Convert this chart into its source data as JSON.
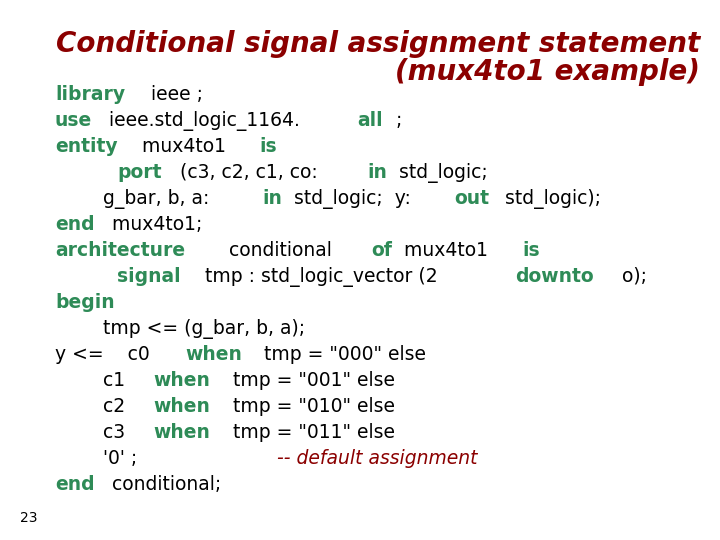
{
  "title_line1": "Conditional signal assignment statement",
  "title_line2": "(mux4to1 example)",
  "title_color": "#8B0000",
  "title_fontsize": 20,
  "bg_color": "#FFFFFF",
  "code_fontsize": 13.5,
  "green": "#2E8B57",
  "black": "#000000",
  "red_comment": "#8B0000",
  "footer_number": "23",
  "lines": [
    {
      "segments": [
        {
          "text": "library",
          "color": "#2E8B57",
          "bold": true
        },
        {
          "text": " ieee ;",
          "color": "#000000",
          "bold": false
        }
      ]
    },
    {
      "segments": [
        {
          "text": "use",
          "color": "#2E8B57",
          "bold": true
        },
        {
          "text": " ieee.std_logic_1164.",
          "color": "#000000",
          "bold": false
        },
        {
          "text": "all",
          "color": "#2E8B57",
          "bold": true
        },
        {
          "text": " ;",
          "color": "#000000",
          "bold": false
        }
      ]
    },
    {
      "segments": [
        {
          "text": "entity",
          "color": "#2E8B57",
          "bold": true
        },
        {
          "text": " mux4to1 ",
          "color": "#000000",
          "bold": false
        },
        {
          "text": "is",
          "color": "#2E8B57",
          "bold": true
        }
      ]
    },
    {
      "segments": [
        {
          "text": "        ",
          "color": "#000000",
          "bold": false
        },
        {
          "text": "port",
          "color": "#2E8B57",
          "bold": true
        },
        {
          "text": " (c3, c2, c1, co: ",
          "color": "#000000",
          "bold": false
        },
        {
          "text": "in",
          "color": "#2E8B57",
          "bold": true
        },
        {
          "text": " std_logic;",
          "color": "#000000",
          "bold": false
        }
      ]
    },
    {
      "segments": [
        {
          "text": "        g_bar, b, a: ",
          "color": "#000000",
          "bold": false
        },
        {
          "text": "in",
          "color": "#2E8B57",
          "bold": true
        },
        {
          "text": " std_logic;  y: ",
          "color": "#000000",
          "bold": false
        },
        {
          "text": "out",
          "color": "#2E8B57",
          "bold": true
        },
        {
          "text": " std_logic);",
          "color": "#000000",
          "bold": false
        }
      ]
    },
    {
      "segments": [
        {
          "text": "end",
          "color": "#2E8B57",
          "bold": true
        },
        {
          "text": " mux4to1;",
          "color": "#000000",
          "bold": false
        }
      ]
    },
    {
      "segments": [
        {
          "text": "architecture",
          "color": "#2E8B57",
          "bold": true
        },
        {
          "text": " conditional ",
          "color": "#000000",
          "bold": false
        },
        {
          "text": "of",
          "color": "#2E8B57",
          "bold": true
        },
        {
          "text": " mux4to1 ",
          "color": "#000000",
          "bold": false
        },
        {
          "text": "is",
          "color": "#2E8B57",
          "bold": true
        }
      ]
    },
    {
      "segments": [
        {
          "text": "        ",
          "color": "#000000",
          "bold": false
        },
        {
          "text": "signal",
          "color": "#2E8B57",
          "bold": true
        },
        {
          "text": " tmp : std_logic_vector (2 ",
          "color": "#000000",
          "bold": false
        },
        {
          "text": "downto",
          "color": "#2E8B57",
          "bold": true
        },
        {
          "text": " o);",
          "color": "#000000",
          "bold": false
        }
      ]
    },
    {
      "segments": [
        {
          "text": "begin",
          "color": "#2E8B57",
          "bold": true
        }
      ]
    },
    {
      "segments": [
        {
          "text": "        tmp <= (g_bar, b, a);",
          "color": "#000000",
          "bold": false
        }
      ]
    },
    {
      "segments": [
        {
          "text": "y <=    c0 ",
          "color": "#000000",
          "bold": false
        },
        {
          "text": "when",
          "color": "#2E8B57",
          "bold": true
        },
        {
          "text": " tmp = \"000\" else",
          "color": "#000000",
          "bold": false
        }
      ]
    },
    {
      "segments": [
        {
          "text": "        c1 ",
          "color": "#000000",
          "bold": false
        },
        {
          "text": "when",
          "color": "#2E8B57",
          "bold": true
        },
        {
          "text": " tmp = \"001\" else",
          "color": "#000000",
          "bold": false
        }
      ]
    },
    {
      "segments": [
        {
          "text": "        c2 ",
          "color": "#000000",
          "bold": false
        },
        {
          "text": "when",
          "color": "#2E8B57",
          "bold": true
        },
        {
          "text": " tmp = \"010\" else",
          "color": "#000000",
          "bold": false
        }
      ]
    },
    {
      "segments": [
        {
          "text": "        c3 ",
          "color": "#000000",
          "bold": false
        },
        {
          "text": "when",
          "color": "#2E8B57",
          "bold": true
        },
        {
          "text": " tmp = \"011\" else",
          "color": "#000000",
          "bold": false
        }
      ]
    },
    {
      "segments": [
        {
          "text": "        '0' ;               ",
          "color": "#000000",
          "bold": false
        },
        {
          "text": "-- default assignment",
          "color": "#8B0000",
          "bold": false,
          "italic": true
        }
      ]
    },
    {
      "segments": [
        {
          "text": "end",
          "color": "#2E8B57",
          "bold": true
        },
        {
          "text": " conditional;",
          "color": "#000000",
          "bold": false
        }
      ]
    }
  ]
}
